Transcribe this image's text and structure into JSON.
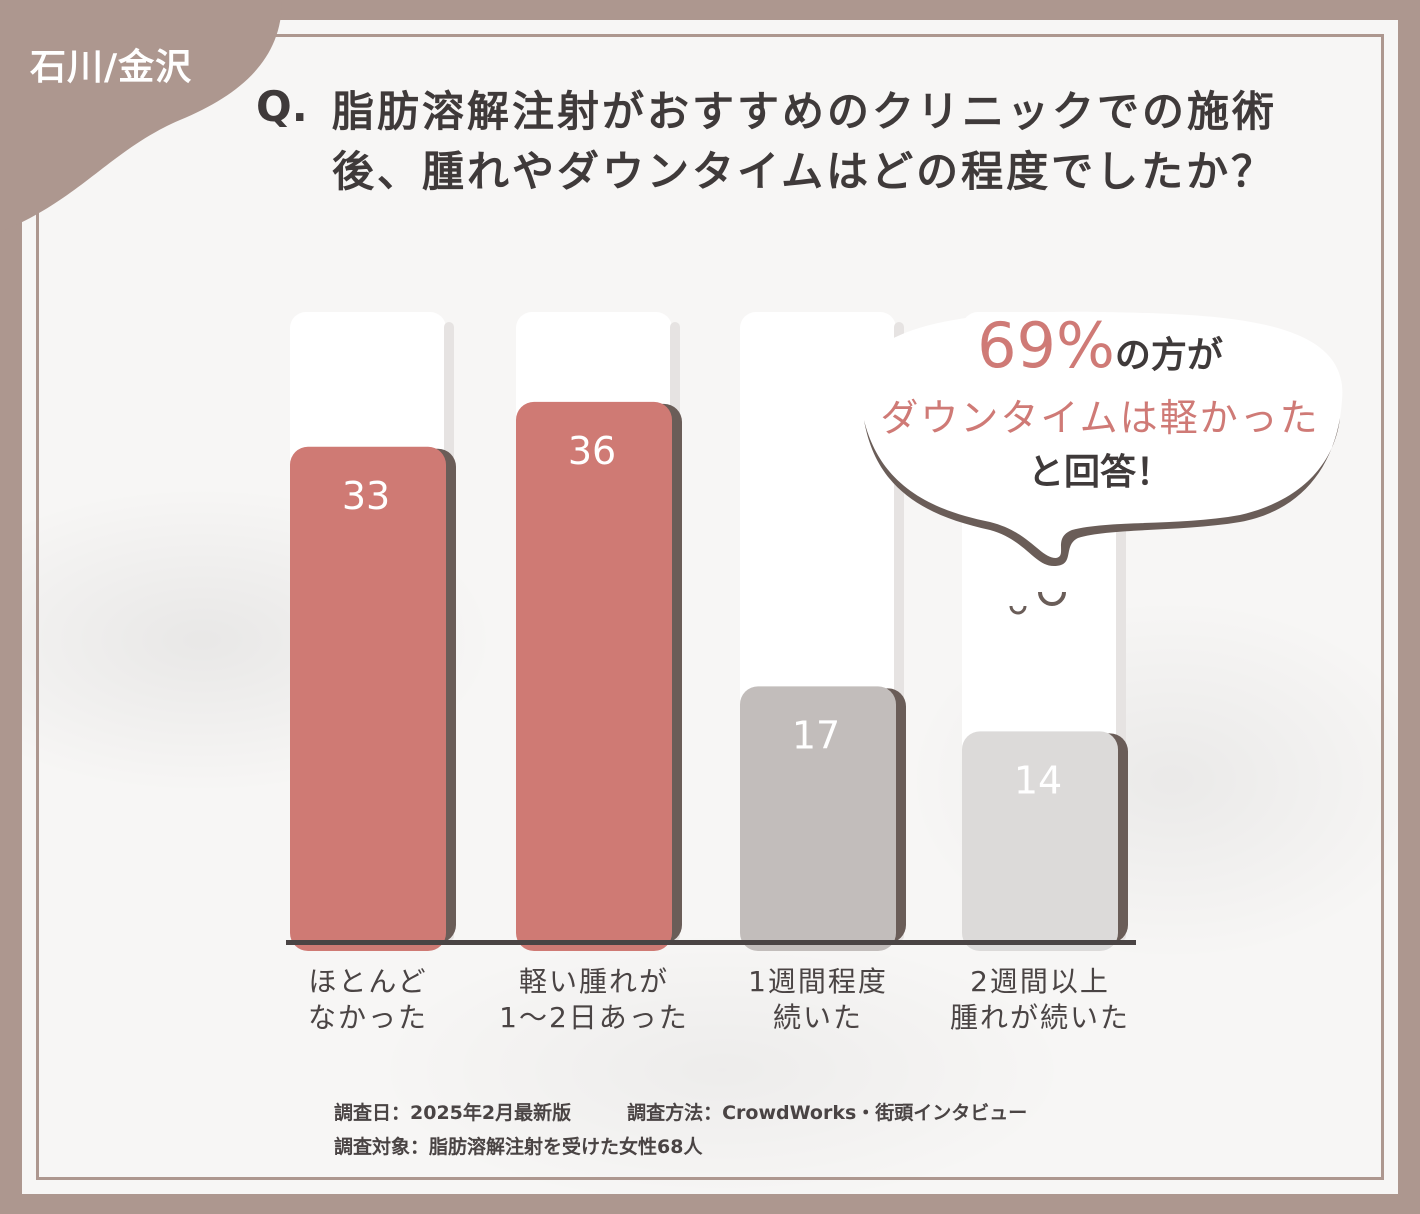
{
  "header": {
    "location": "石川/金沢",
    "q_mark": "Q.",
    "title_line1": "脂肪溶解注射がおすすめのクリニックでの施術",
    "title_line2": "後、腫れやダウンタイムはどの程度でしたか？"
  },
  "callout": {
    "percent": "69%",
    "line1_suffix": "の方が",
    "line2": "ダウンタイムは軽かった",
    "line3": "と回答！"
  },
  "chart_data": {
    "type": "bar",
    "categories": [
      [
        "ほとんど",
        "なかった"
      ],
      [
        "軽い腫れが",
        "1〜2日あった"
      ],
      [
        "1週間程度",
        "続いた"
      ],
      [
        "2週間以上",
        "腫れが続いた"
      ]
    ],
    "values": [
      33,
      36,
      17,
      14
    ],
    "bar_colors": [
      "#cf7a74",
      "#cf7a74",
      "#c2bdbb",
      "#dcdad9"
    ],
    "label_colors": [
      "#ffffff",
      "#ffffff",
      "#ffffff",
      "#ffffff"
    ],
    "ylim": [
      0,
      40
    ]
  },
  "footer": {
    "survey_date": "調査日：2025年2月最新版",
    "survey_method": "調査方法：CrowdWorks・街頭インタビュー",
    "survey_target": "調査対象：脂肪溶解注射を受けた女性68人"
  },
  "colors": {
    "frame": "#ad978f",
    "accent": "#cf7a76",
    "text": "#3f3a3a"
  }
}
